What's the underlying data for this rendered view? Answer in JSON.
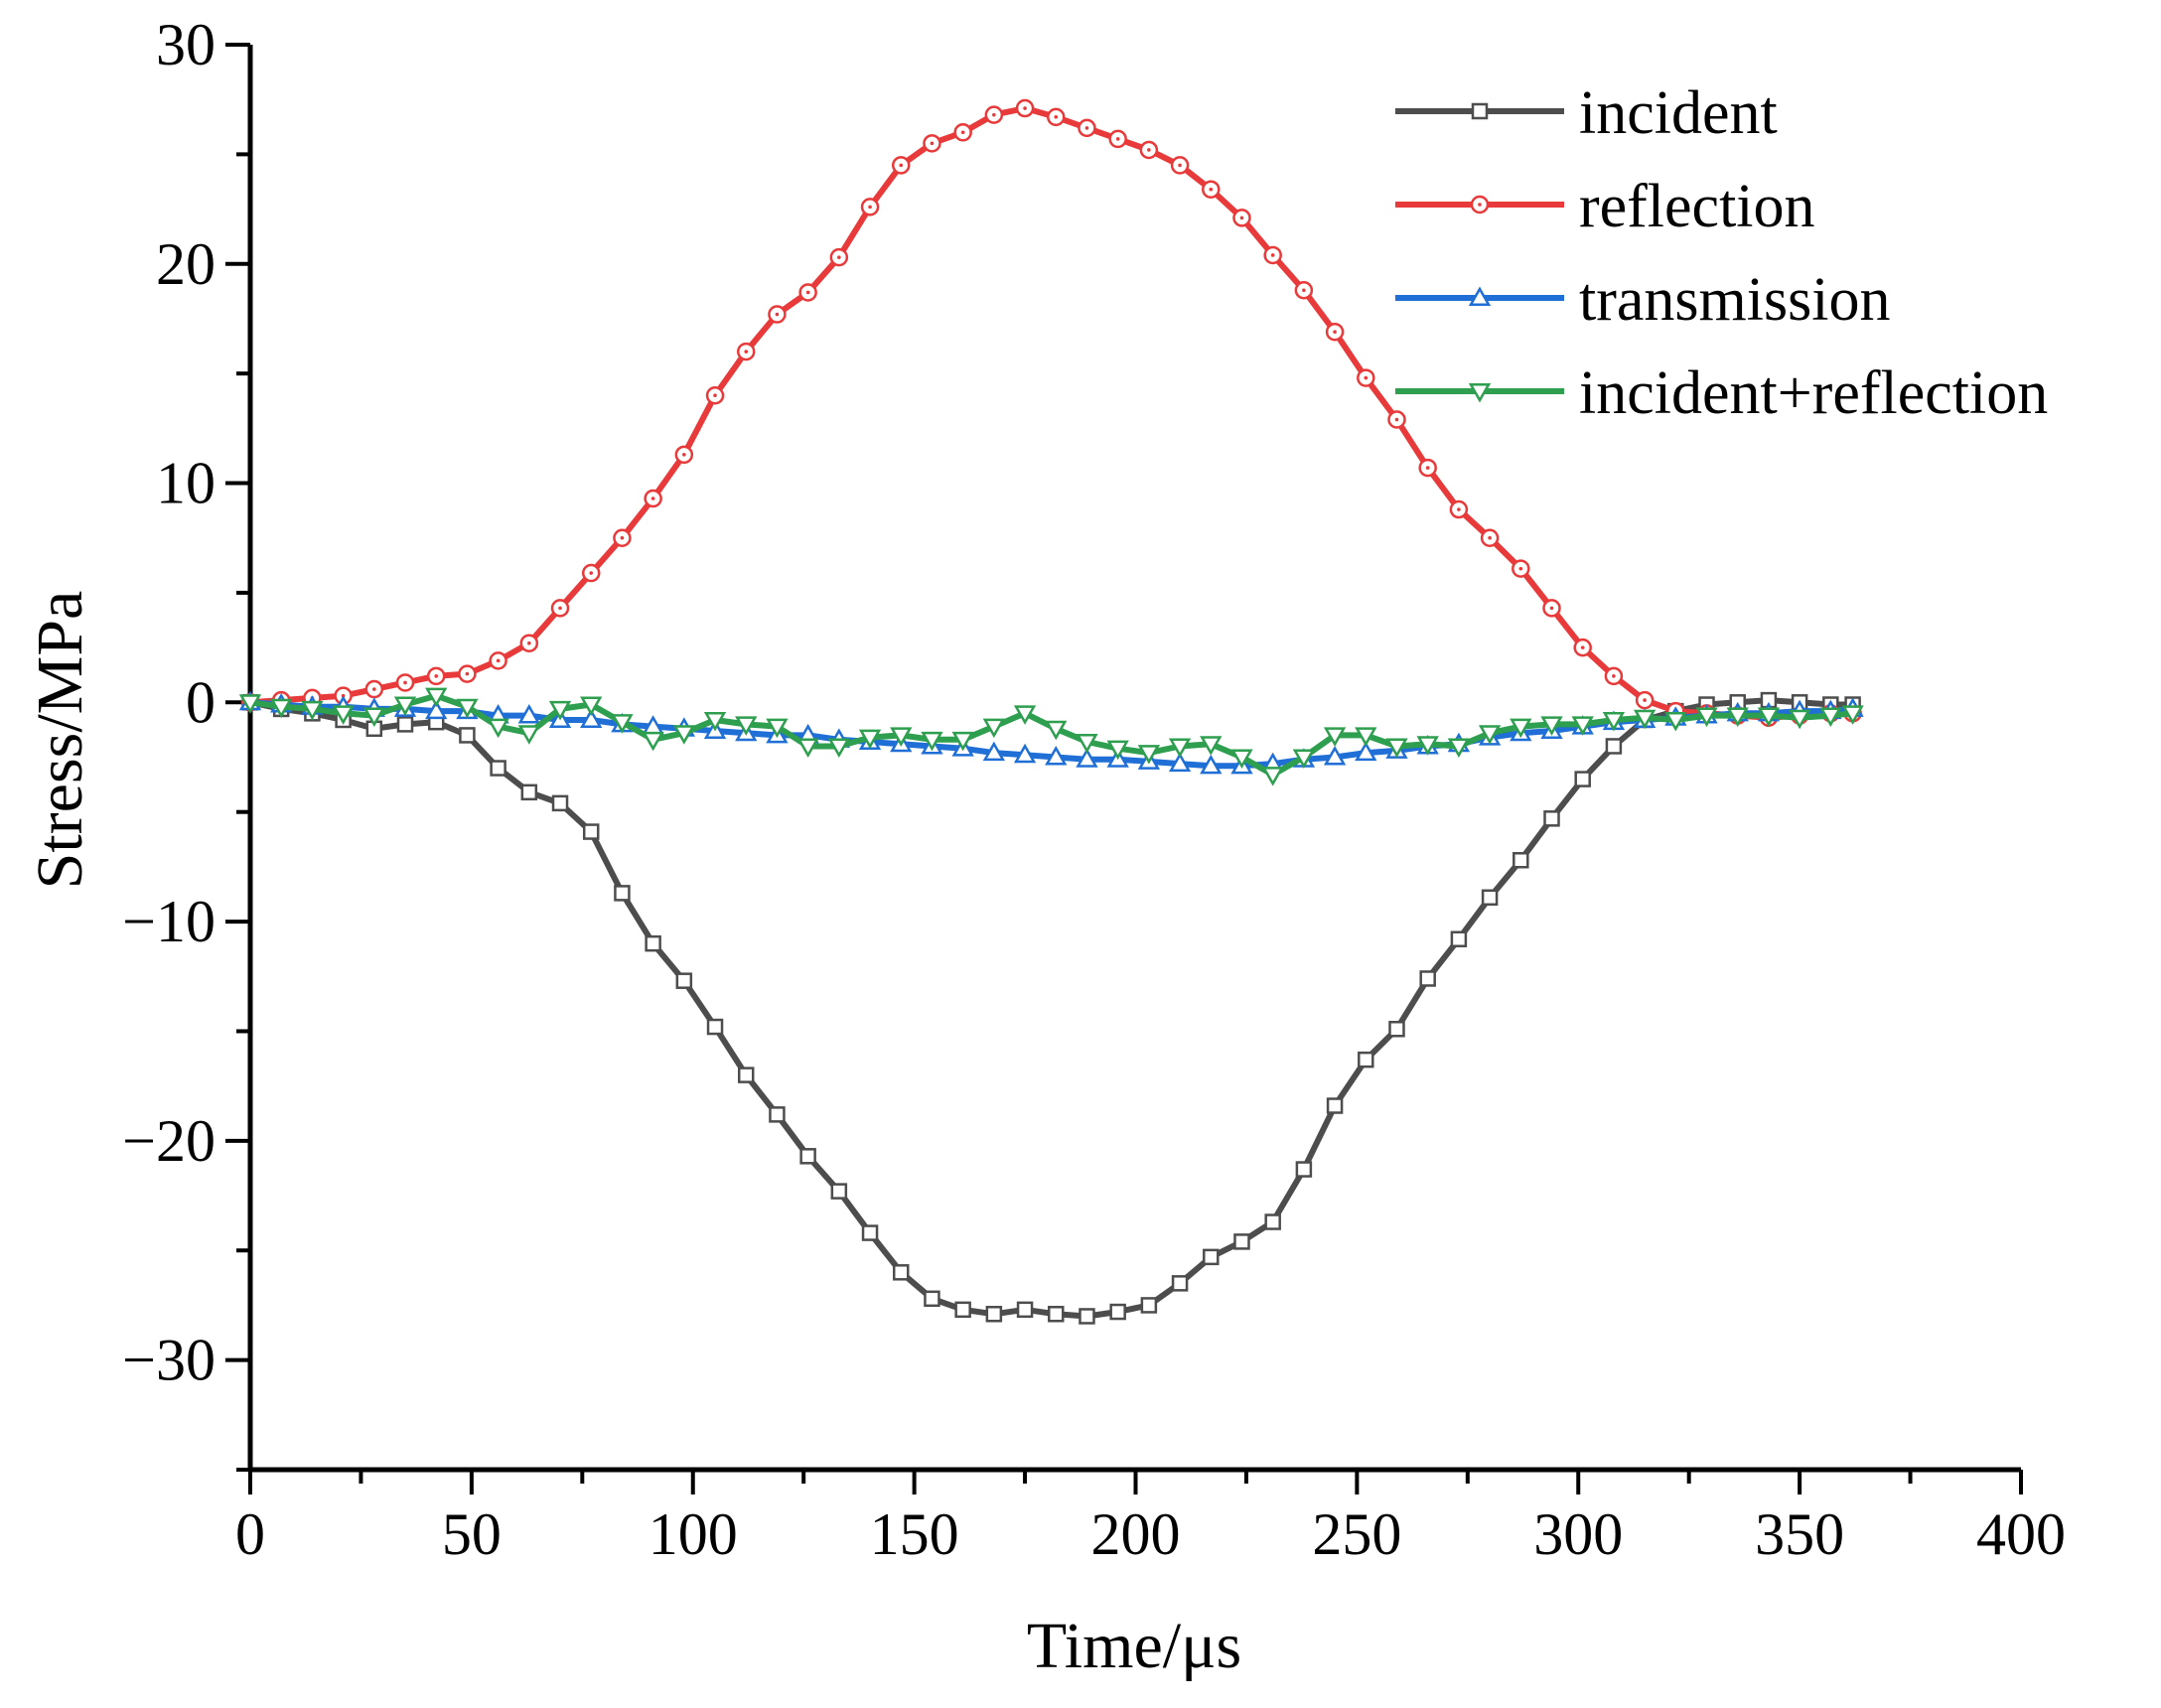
{
  "chart_data": {
    "type": "line",
    "title": "",
    "xlabel": "Time/μs",
    "ylabel": "Stress/MPa",
    "xlim": [
      0,
      400
    ],
    "ylim": [
      -35,
      30
    ],
    "grid": false,
    "legend_position": "top-right",
    "x_ticks": [
      0,
      50,
      100,
      150,
      200,
      250,
      300,
      350,
      400
    ],
    "x_tick_labels": [
      "0",
      "50",
      "100",
      "150",
      "200",
      "250",
      "300",
      "350",
      "400"
    ],
    "y_ticks": [
      -30,
      -20,
      -10,
      0,
      10,
      20,
      30
    ],
    "y_tick_labels": [
      "−30",
      "−20",
      "−10",
      "0",
      "10",
      "20",
      "30"
    ],
    "x": [
      0,
      7,
      14,
      21,
      28,
      35,
      42,
      49,
      56,
      63,
      70,
      77,
      84,
      91,
      98,
      105,
      112,
      119,
      126,
      133,
      140,
      147,
      154,
      161,
      168,
      175,
      182,
      189,
      196,
      203,
      210,
      217,
      224,
      231,
      238,
      245,
      252,
      259,
      266,
      273,
      280,
      287,
      294,
      301,
      308,
      315,
      322,
      329,
      336,
      343,
      350,
      357,
      362
    ],
    "series": [
      {
        "name": "incident",
        "color": "#4d4d4d",
        "marker": "square",
        "values": [
          0,
          -0.3,
          -0.5,
          -0.8,
          -1.2,
          -1.0,
          -0.9,
          -1.5,
          -3.0,
          -4.1,
          -4.6,
          -5.9,
          -8.7,
          -11.0,
          -12.7,
          -14.8,
          -17.0,
          -18.8,
          -20.7,
          -22.3,
          -24.2,
          -26.0,
          -27.2,
          -27.7,
          -27.9,
          -27.7,
          -27.9,
          -28.0,
          -27.8,
          -27.5,
          -26.5,
          -25.3,
          -24.6,
          -23.7,
          -21.3,
          -18.4,
          -16.3,
          -14.9,
          -12.6,
          -10.8,
          -8.9,
          -7.2,
          -5.3,
          -3.5,
          -2.0,
          -0.8,
          -0.4,
          -0.1,
          0.0,
          0.1,
          0.0,
          -0.1,
          -0.1
        ]
      },
      {
        "name": "reflection",
        "color": "#e83a3a",
        "marker": "circle",
        "values": [
          0,
          0.1,
          0.2,
          0.3,
          0.6,
          0.9,
          1.2,
          1.3,
          1.9,
          2.7,
          4.3,
          5.9,
          7.5,
          9.3,
          11.3,
          14.0,
          16.0,
          17.7,
          18.7,
          20.3,
          22.6,
          24.5,
          25.5,
          26.0,
          26.8,
          27.1,
          26.7,
          26.2,
          25.7,
          25.2,
          24.5,
          23.4,
          22.1,
          20.4,
          18.8,
          16.9,
          14.8,
          12.9,
          10.7,
          8.8,
          7.5,
          6.1,
          4.3,
          2.5,
          1.2,
          0.1,
          -0.4,
          -0.5,
          -0.6,
          -0.7,
          -0.6,
          -0.5,
          -0.5
        ]
      },
      {
        "name": "transmission",
        "color": "#1f6fd6",
        "marker": "triangle-up",
        "values": [
          0,
          -0.1,
          -0.2,
          -0.2,
          -0.3,
          -0.3,
          -0.4,
          -0.4,
          -0.6,
          -0.6,
          -0.8,
          -0.8,
          -1.0,
          -1.1,
          -1.2,
          -1.3,
          -1.4,
          -1.5,
          -1.5,
          -1.7,
          -1.8,
          -1.9,
          -2.0,
          -2.1,
          -2.3,
          -2.4,
          -2.5,
          -2.6,
          -2.6,
          -2.7,
          -2.8,
          -2.9,
          -2.9,
          -2.8,
          -2.6,
          -2.5,
          -2.3,
          -2.2,
          -2.0,
          -1.9,
          -1.6,
          -1.4,
          -1.3,
          -1.1,
          -0.9,
          -0.8,
          -0.7,
          -0.6,
          -0.5,
          -0.5,
          -0.4,
          -0.4,
          -0.3
        ]
      },
      {
        "name": "incident+reflection",
        "color": "#2e9e4f",
        "marker": "triangle-down",
        "values": [
          0,
          -0.2,
          -0.3,
          -0.5,
          -0.6,
          -0.1,
          0.3,
          -0.2,
          -1.1,
          -1.4,
          -0.3,
          -0.1,
          -0.9,
          -1.7,
          -1.4,
          -0.8,
          -1.0,
          -1.1,
          -2.0,
          -2.0,
          -1.6,
          -1.5,
          -1.7,
          -1.7,
          -1.1,
          -0.5,
          -1.2,
          -1.8,
          -2.1,
          -2.3,
          -2.0,
          -1.9,
          -2.5,
          -3.3,
          -2.5,
          -1.5,
          -1.5,
          -2.0,
          -1.9,
          -2.0,
          -1.4,
          -1.1,
          -1.0,
          -1.0,
          -0.8,
          -0.7,
          -0.8,
          -0.6,
          -0.6,
          -0.6,
          -0.7,
          -0.6,
          -0.5
        ]
      }
    ]
  }
}
